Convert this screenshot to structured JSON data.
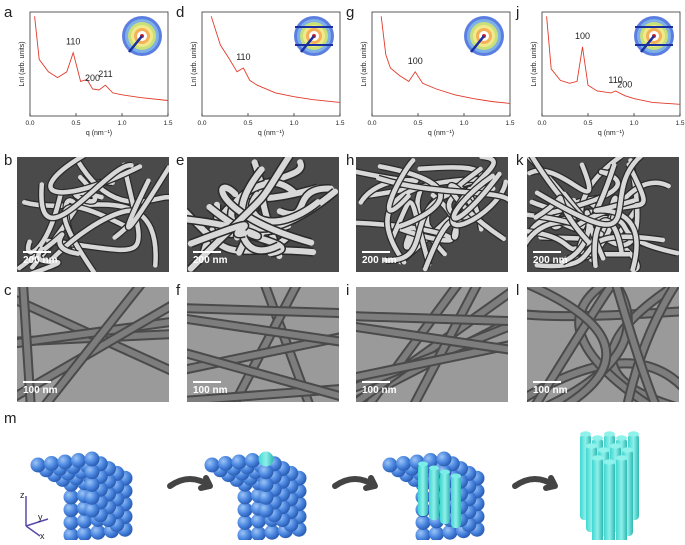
{
  "labels": [
    "a",
    "d",
    "g",
    "j",
    "b",
    "e",
    "h",
    "k",
    "c",
    "f",
    "i",
    "l",
    "m"
  ],
  "saxs": [
    {
      "label": "a",
      "ylabel": "LnI (arb. units)",
      "xlabel": "q (nm⁻¹)",
      "xlim": [
        0,
        1.5
      ],
      "ticks": [
        "0.0",
        "0.5",
        "1.0",
        "1.5"
      ],
      "peaks": [
        "110",
        "200",
        "211"
      ]
    },
    {
      "label": "d",
      "ylabel": "LnI (arb. units)",
      "xlabel": "q (nm⁻¹)",
      "xlim": [
        0,
        1.5
      ],
      "ticks": [
        "0.0",
        "0.5",
        "1.0",
        "1.5"
      ],
      "peaks": [
        "110"
      ]
    },
    {
      "label": "g",
      "ylabel": "LnI (arb. units)",
      "xlabel": "q (nm⁻¹)",
      "xlim": [
        0,
        1.5
      ],
      "ticks": [
        "0.0",
        "0.5",
        "1.0",
        "1.5"
      ],
      "peaks": [
        "100"
      ]
    },
    {
      "label": "j",
      "ylabel": "LnI (arb. units)",
      "xlabel": "q (nm⁻¹)",
      "xlim": [
        0,
        1.5
      ],
      "ticks": [
        "0.0",
        "0.5",
        "1.0",
        "1.5"
      ],
      "peaks": [
        "100",
        "110",
        "200"
      ]
    }
  ],
  "chart_data": [
    {
      "type": "line",
      "xlabel": "q (nm⁻¹)",
      "ylabel": "LnI (arb. units)",
      "xlim": [
        0,
        1.5
      ],
      "x": [
        0.05,
        0.1,
        0.2,
        0.3,
        0.4,
        0.47,
        0.55,
        0.62,
        0.68,
        0.75,
        0.82,
        0.9,
        1.0,
        1.2,
        1.5
      ],
      "y": [
        1.0,
        0.55,
        0.42,
        0.36,
        0.42,
        0.62,
        0.32,
        0.34,
        0.24,
        0.23,
        0.28,
        0.2,
        0.18,
        0.15,
        0.12
      ],
      "annotations": [
        "110",
        "200",
        "211"
      ]
    },
    {
      "type": "line",
      "xlabel": "q (nm⁻¹)",
      "ylabel": "LnI (arb. units)",
      "xlim": [
        0,
        1.5
      ],
      "x": [
        0.1,
        0.15,
        0.2,
        0.3,
        0.38,
        0.45,
        0.52,
        0.6,
        0.8,
        1.0,
        1.2,
        1.5
      ],
      "y": [
        1.0,
        0.85,
        0.7,
        0.55,
        0.42,
        0.46,
        0.33,
        0.28,
        0.2,
        0.16,
        0.13,
        0.1
      ],
      "annotations": [
        "110"
      ]
    },
    {
      "type": "line",
      "xlabel": "q (nm⁻¹)",
      "ylabel": "LnI (arb. units)",
      "xlim": [
        0,
        1.5
      ],
      "x": [
        0.1,
        0.15,
        0.2,
        0.3,
        0.4,
        0.47,
        0.55,
        0.7,
        0.9,
        1.1,
        1.3,
        1.5
      ],
      "y": [
        1.0,
        0.6,
        0.46,
        0.38,
        0.32,
        0.42,
        0.3,
        0.24,
        0.18,
        0.14,
        0.11,
        0.09
      ],
      "annotations": [
        "100"
      ]
    },
    {
      "type": "line",
      "xlabel": "q (nm⁻¹)",
      "ylabel": "LnI (arb. units)",
      "xlim": [
        0,
        1.5
      ],
      "x": [
        0.05,
        0.1,
        0.2,
        0.3,
        0.38,
        0.44,
        0.5,
        0.6,
        0.75,
        0.8,
        0.9,
        1.0,
        1.2,
        1.5
      ],
      "y": [
        1.0,
        0.45,
        0.33,
        0.3,
        0.32,
        0.68,
        0.28,
        0.22,
        0.2,
        0.22,
        0.17,
        0.14,
        0.1,
        0.08
      ],
      "annotations": [
        "100",
        "110",
        "200"
      ]
    }
  ],
  "sem_scale": "200 nm",
  "tem_scale": "100 nm",
  "axes_labels": {
    "x": "x",
    "y": "y",
    "z": "z"
  }
}
